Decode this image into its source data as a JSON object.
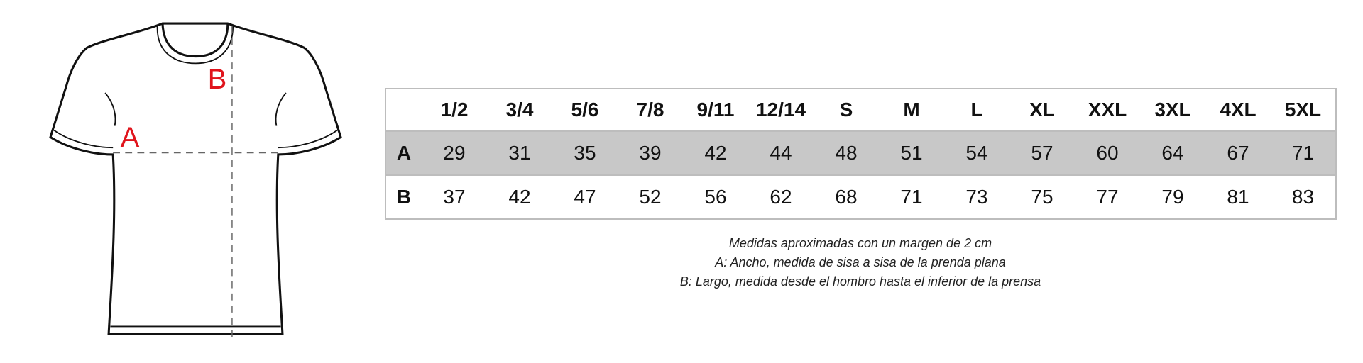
{
  "diagram": {
    "labels": [
      "A",
      "B"
    ]
  },
  "table": {
    "header": [
      "1/2",
      "3/4",
      "5/6",
      "7/8",
      "9/11",
      "12/14",
      "S",
      "M",
      "L",
      "XL",
      "XXL",
      "3XL",
      "4XL",
      "5XL"
    ],
    "rows": [
      {
        "label": "A",
        "values": [
          29,
          31,
          35,
          39,
          42,
          44,
          48,
          51,
          54,
          57,
          60,
          64,
          67,
          71
        ]
      },
      {
        "label": "B",
        "values": [
          37,
          42,
          47,
          52,
          56,
          62,
          68,
          71,
          73,
          75,
          77,
          79,
          81,
          83
        ]
      }
    ]
  },
  "notes": [
    "Medidas aproximadas con un margen de 2 cm",
    "A: Ancho, medida de sisa a sisa de la prenda plana",
    "B: Largo, medida desde el hombro hasta el inferior de la prensa"
  ]
}
